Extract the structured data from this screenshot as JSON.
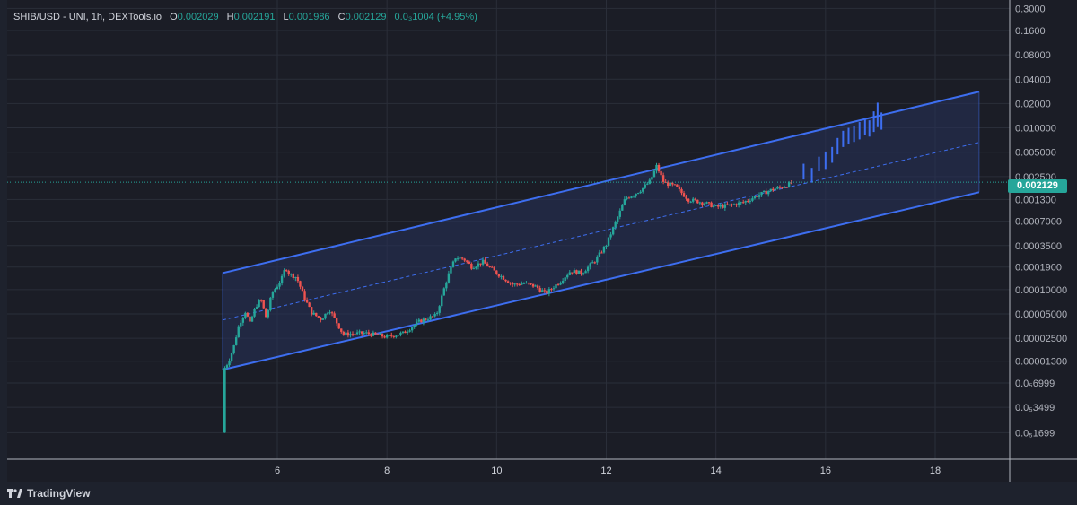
{
  "legend": {
    "symbol": "SHIB/USD - UNI, 1h, DEXTools.io",
    "o_label": "O",
    "o_value": "0.002029",
    "h_label": "H",
    "h_value": "0.002191",
    "l_label": "L",
    "l_value": "0.001986",
    "c_label": "C",
    "c_value": "0.002129",
    "change_value": "0.0₃1004",
    "change_pct": "(+4.95%)"
  },
  "last_price_tag": "0.002129",
  "branding": {
    "name": "TradingView"
  },
  "colors": {
    "background": "#1b1d26",
    "grid": "#2a2e39",
    "up_candle": "#26a69a",
    "down_candle": "#ef5350",
    "channel_line": "#3d6ef0",
    "channel_fill": "#27325a",
    "projection_bar": "#3d6ef0"
  },
  "chart_data": {
    "type": "candlestick",
    "scale": "log",
    "x_ticks": [
      "6",
      "8",
      "10",
      "12",
      "14",
      "16",
      "18"
    ],
    "y_ticks": [
      "0.3000",
      "0.1600",
      "0.08000",
      "0.04000",
      "0.02000",
      "0.010000",
      "0.005000",
      "0.002500",
      "0.001300",
      "0.0007000",
      "0.0003500",
      "0.0001900",
      "0.00010000",
      "0.00005000",
      "0.00002500",
      "0.00001300",
      "0.0₅6999",
      "0.0₅3499",
      "0.0₅1699"
    ],
    "xlim": [
      5.05,
      18.8
    ],
    "channel": {
      "start_day": 5.0,
      "end_day": 18.8,
      "upper": [
        0.00016,
        0.028
      ],
      "lower": [
        1.02e-05,
        0.0016
      ],
      "mid": [
        4.2e-05,
        0.0066
      ]
    },
    "price_path": [
      [
        5.0,
        1.7e-06
      ],
      [
        5.03,
        1.05e-05
      ],
      [
        5.1,
        1.25e-05
      ],
      [
        5.2,
        1.9e-05
      ],
      [
        5.3,
        3.7e-05
      ],
      [
        5.42,
        5.4e-05
      ],
      [
        5.5,
        3.8e-05
      ],
      [
        5.6,
        6.1e-05
      ],
      [
        5.7,
        7.6e-05
      ],
      [
        5.8,
        4.4e-05
      ],
      [
        5.9,
        9e-05
      ],
      [
        6.0,
        0.000112
      ],
      [
        6.08,
        0.000137
      ],
      [
        6.15,
        0.00019
      ],
      [
        6.22,
        0.000155
      ],
      [
        6.35,
        0.000142
      ],
      [
        6.5,
        7.8e-05
      ],
      [
        6.62,
        5.2e-05
      ],
      [
        6.8,
        4.3e-05
      ],
      [
        6.95,
        5.7e-05
      ],
      [
        7.2,
        2.8e-05
      ],
      [
        7.6,
        2.9e-05
      ],
      [
        8.0,
        2.6e-05
      ],
      [
        8.3,
        2.9e-05
      ],
      [
        8.6,
        4.1e-05
      ],
      [
        8.9,
        4.8e-05
      ],
      [
        9.1,
        0.00014
      ],
      [
        9.25,
        0.00025
      ],
      [
        9.4,
        0.00024
      ],
      [
        9.55,
        0.00019
      ],
      [
        9.75,
        0.00022
      ],
      [
        10.0,
        0.00016
      ],
      [
        10.3,
        0.000115
      ],
      [
        10.5,
        0.00012
      ],
      [
        10.7,
        0.00011
      ],
      [
        10.9,
        9e-05
      ],
      [
        11.15,
        0.000125
      ],
      [
        11.35,
        0.00017
      ],
      [
        11.55,
        0.00016
      ],
      [
        11.8,
        0.00023
      ],
      [
        12.0,
        0.00036
      ],
      [
        12.2,
        0.00076
      ],
      [
        12.35,
        0.00135
      ],
      [
        12.5,
        0.0015
      ],
      [
        12.65,
        0.00175
      ],
      [
        12.8,
        0.0022
      ],
      [
        12.92,
        0.0034
      ],
      [
        13.05,
        0.0021
      ],
      [
        13.25,
        0.0019
      ],
      [
        13.5,
        0.0013
      ],
      [
        13.8,
        0.00118
      ],
      [
        14.0,
        0.00105
      ],
      [
        14.25,
        0.0011
      ],
      [
        14.5,
        0.0012
      ],
      [
        14.8,
        0.0015
      ],
      [
        15.0,
        0.0017
      ],
      [
        15.25,
        0.0019
      ],
      [
        15.4,
        0.0021
      ]
    ],
    "projection_bars": [
      [
        15.6,
        0.0023,
        0.0036
      ],
      [
        15.75,
        0.0021,
        0.0032
      ],
      [
        15.88,
        0.0029,
        0.0044
      ],
      [
        16.0,
        0.0031,
        0.0051
      ],
      [
        16.12,
        0.0037,
        0.0058
      ],
      [
        16.22,
        0.0047,
        0.0075
      ],
      [
        16.32,
        0.0058,
        0.0092
      ],
      [
        16.42,
        0.0063,
        0.01
      ],
      [
        16.52,
        0.0067,
        0.0106
      ],
      [
        16.62,
        0.0072,
        0.0118
      ],
      [
        16.72,
        0.0081,
        0.0132
      ],
      [
        16.8,
        0.0078,
        0.0124
      ],
      [
        16.88,
        0.0089,
        0.016
      ],
      [
        16.95,
        0.0102,
        0.0205
      ],
      [
        17.02,
        0.0095,
        0.0155
      ]
    ]
  }
}
